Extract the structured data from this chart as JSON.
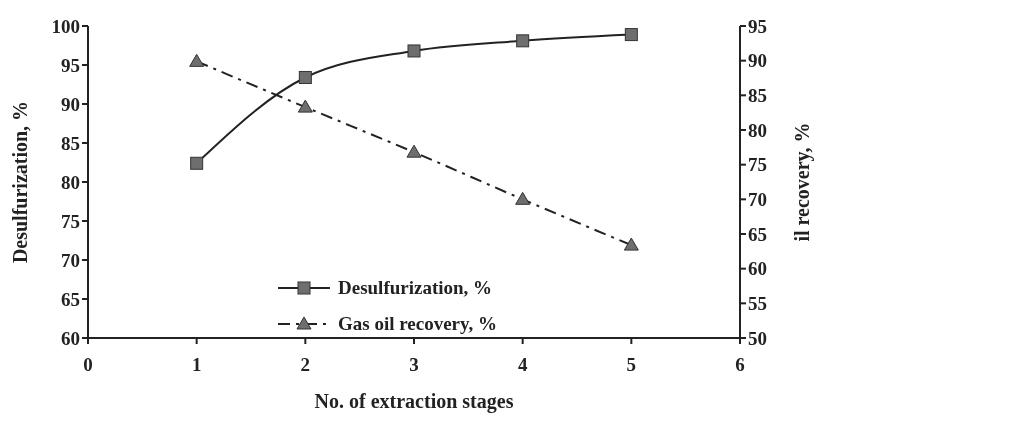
{
  "chart_data": {
    "type": "line",
    "xlabel": "No. of extraction stages",
    "ylabel": "Desulfurization, %",
    "y2label": "il recovery, %",
    "x": [
      1,
      2,
      3,
      4,
      5
    ],
    "series": [
      {
        "name": "Desulfurization, %",
        "color": "#6e6e6e",
        "values": [
          82.4,
          93.4,
          96.8,
          98.1,
          98.9
        ],
        "marker": "square",
        "line_style": "solid"
      },
      {
        "name": "Gas oil recovery, %",
        "color": "#6e6e6e",
        "values": [
          89.9,
          83.3,
          76.8,
          70.0,
          63.4
        ],
        "marker": "triangle",
        "line_style": "dashed",
        "axis": "y2"
      }
    ],
    "xlim": [
      0,
      6
    ],
    "xticks": [
      0,
      1,
      2,
      3,
      4,
      5,
      6
    ],
    "ylim": [
      60,
      100
    ],
    "yticks": [
      60,
      65,
      70,
      75,
      80,
      85,
      90,
      95,
      100
    ],
    "y2lim": [
      50,
      95
    ],
    "y2ticks": [
      50,
      55,
      60,
      65,
      70,
      75,
      80,
      85,
      90,
      95
    ],
    "grid": false,
    "legend": "bottom"
  }
}
